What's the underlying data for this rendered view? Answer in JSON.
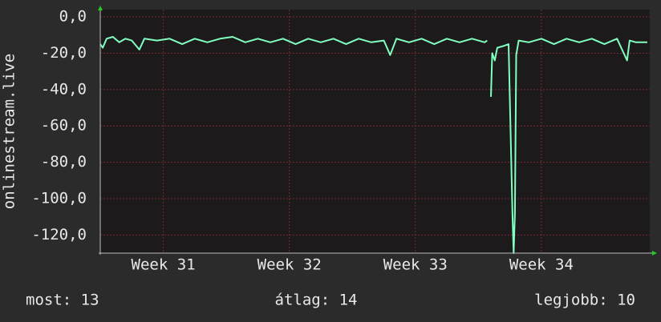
{
  "chart_data": {
    "type": "line",
    "y_label": "onlinestream.live",
    "x": [
      31.0,
      31.02,
      31.05,
      31.1,
      31.15,
      31.2,
      31.25,
      31.31,
      31.35,
      31.45,
      31.55,
      31.65,
      31.75,
      31.85,
      31.95,
      32.05,
      32.15,
      32.25,
      32.35,
      32.45,
      32.55,
      32.65,
      32.75,
      32.85,
      32.95,
      33.05,
      33.15,
      33.25,
      33.3,
      33.35,
      33.45,
      33.55,
      33.65,
      33.75,
      33.85,
      33.95,
      34.05,
      34.07,
      34.085,
      34.1,
      34.11,
      34.13,
      34.15,
      34.2,
      34.24,
      34.27,
      34.28,
      34.29,
      34.3,
      34.32,
      34.4,
      34.5,
      34.6,
      34.7,
      34.8,
      34.9,
      35.0,
      35.1,
      35.18,
      35.2,
      35.25,
      35.34
    ],
    "series": [
      {
        "color": "#80ffc0",
        "values": [
          -15,
          -17,
          -12,
          -11,
          -14,
          -12,
          -13,
          -18,
          -12,
          -13,
          -12,
          -15,
          -12,
          -14,
          -12,
          -11,
          -14,
          -12,
          -14,
          -12,
          -15,
          -12,
          -14,
          -12,
          -15,
          -12,
          -14,
          -13,
          -21,
          -12,
          -14,
          -12,
          -15,
          -12,
          -14,
          -12,
          -14,
          -13,
          null,
          -44,
          -20,
          -24,
          -17,
          -16,
          -15,
          -108,
          -130,
          -108,
          -21,
          -13,
          -14,
          -12,
          -15,
          -12,
          -14,
          -12,
          -15,
          -12,
          -24,
          -13,
          -14,
          -14
        ]
      }
    ],
    "xlim": [
      31.0,
      35.36
    ],
    "xticks": [
      {
        "value": 31.5,
        "label": "Week 31"
      },
      {
        "value": 32.5,
        "label": "Week 32"
      },
      {
        "value": 33.5,
        "label": "Week 33"
      },
      {
        "value": 34.5,
        "label": "Week 34"
      }
    ],
    "ylim": [
      -130,
      4
    ],
    "yticks": [
      {
        "value": 0,
        "label": "0,0"
      },
      {
        "value": -20,
        "label": "-20,0"
      },
      {
        "value": -40,
        "label": "-40,0"
      },
      {
        "value": -60,
        "label": "-60,0"
      },
      {
        "value": -80,
        "label": "-80,0"
      },
      {
        "value": -100,
        "label": "-100,0"
      },
      {
        "value": -120,
        "label": "-120,0"
      }
    ],
    "grid": true,
    "footer": {
      "current": "most: 13",
      "average": "átlag: 14",
      "best": "legjobb: 10"
    }
  }
}
